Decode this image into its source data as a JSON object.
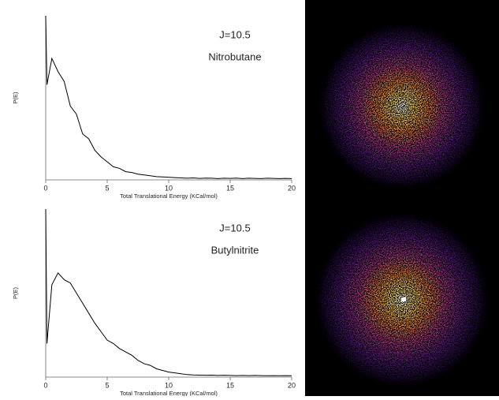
{
  "chart_data": [
    {
      "type": "line",
      "annotations": [
        "J=10.5",
        "Nitrobutane"
      ],
      "xlabel": "Total Translational Energy (KCal/mol)",
      "ylabel": "P(E)",
      "xlim": [
        0,
        20
      ],
      "xticks": [
        0,
        5,
        10,
        15,
        20
      ],
      "ylim": [
        0,
        1
      ],
      "x": [
        0,
        0.1,
        0.5,
        1,
        1.5,
        2,
        2.5,
        3,
        3.5,
        4,
        4.5,
        5,
        5.5,
        6,
        6.5,
        7,
        7.5,
        8,
        8.5,
        9,
        9.5,
        10,
        10.5,
        11,
        11.5,
        12,
        12.5,
        13,
        13.5,
        14,
        14.5,
        15,
        15.5,
        16,
        16.5,
        17,
        17.5,
        18,
        18.5,
        19,
        19.5,
        20
      ],
      "series": [
        {
          "color": "#000000",
          "values": [
            1.0,
            0.58,
            0.74,
            0.66,
            0.6,
            0.45,
            0.4,
            0.28,
            0.25,
            0.18,
            0.14,
            0.11,
            0.08,
            0.07,
            0.05,
            0.045,
            0.035,
            0.03,
            0.025,
            0.02,
            0.018,
            0.016,
            0.014,
            0.012,
            0.01,
            0.012,
            0.009,
            0.011,
            0.01,
            0.008,
            0.01,
            0.009,
            0.011,
            0.008,
            0.01,
            0.009,
            0.008,
            0.01,
            0.009,
            0.008,
            0.009,
            0.008
          ]
        }
      ]
    },
    {
      "type": "line",
      "annotations": [
        "J=10.5",
        "Butylnitrite"
      ],
      "xlabel": "Total Translational Energy (KCal/mol)",
      "ylabel": "P(E)",
      "xlim": [
        0,
        20
      ],
      "xticks": [
        0,
        5,
        10,
        15,
        20
      ],
      "ylim": [
        0,
        1
      ],
      "x": [
        0,
        0.1,
        0.5,
        1,
        1.5,
        2,
        2.5,
        3,
        3.5,
        4,
        4.5,
        5,
        5.5,
        6,
        6.5,
        7,
        7.5,
        8,
        8.5,
        9,
        9.5,
        10,
        10.5,
        11,
        11.5,
        12,
        12.5,
        13,
        13.5,
        14,
        14.5,
        15,
        15.5,
        16,
        16.5,
        17,
        17.5,
        18,
        18.5,
        19,
        19.5,
        20
      ],
      "series": [
        {
          "color": "#000000",
          "values": [
            1.0,
            0.2,
            0.55,
            0.62,
            0.58,
            0.56,
            0.5,
            0.44,
            0.38,
            0.32,
            0.27,
            0.22,
            0.2,
            0.17,
            0.15,
            0.13,
            0.1,
            0.08,
            0.07,
            0.05,
            0.04,
            0.03,
            0.025,
            0.02,
            0.015,
            0.013,
            0.012,
            0.011,
            0.012,
            0.01,
            0.011,
            0.01,
            0.009,
            0.01,
            0.009,
            0.01,
            0.009,
            0.008,
            0.009,
            0.008,
            0.009,
            0.008
          ]
        }
      ]
    }
  ]
}
